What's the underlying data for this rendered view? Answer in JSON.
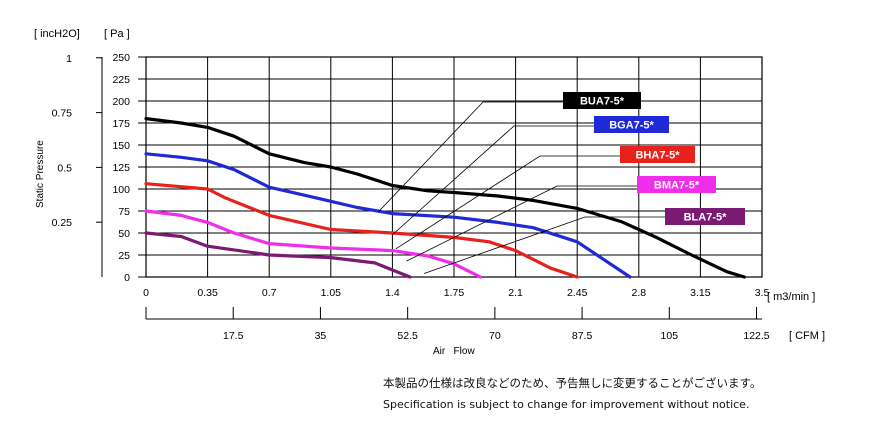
{
  "chart_data": {
    "type": "line",
    "ylabel_pa_unit": "[ Pa ]",
    "ylabel_inh2o_unit": "[ incH2O]",
    "ylabel": "Static Pressure",
    "xlabel": "Air   Flow",
    "x_unit_m3": "[ m3/min ]",
    "x_unit_cfm": "[ CFM ]",
    "xlim": [
      0,
      3.5
    ],
    "ylim": [
      0,
      250
    ],
    "grid": true,
    "x_ticks": [
      "0",
      "0.35",
      "0.7",
      "1.05",
      "1.4",
      "1.75",
      "2.1",
      "2.45",
      "2.8",
      "3.15",
      "3.5"
    ],
    "cfm_ticks": [
      "17.5",
      "35",
      "52.5",
      "70",
      "87.5",
      "105",
      "122.5"
    ],
    "y_ticks_pa": [
      "0",
      "25",
      "50",
      "75",
      "100",
      "125",
      "150",
      "175",
      "200",
      "225",
      "250"
    ],
    "y_ticks_inh2o": [
      "0.25",
      "0.5",
      "0.75",
      "1"
    ],
    "series": [
      {
        "name": "BUA7-5*",
        "color": "#000000",
        "x": [
          0,
          0.2,
          0.35,
          0.5,
          0.7,
          0.9,
          1.05,
          1.2,
          1.4,
          1.6,
          1.75,
          2.0,
          2.2,
          2.45,
          2.7,
          2.9,
          3.1,
          3.3,
          3.4
        ],
        "y": [
          180,
          175,
          170,
          160,
          140,
          130,
          125,
          117,
          104,
          98,
          96,
          92,
          87,
          78,
          63,
          45,
          25,
          6,
          0
        ]
      },
      {
        "name": "BGA7-5*",
        "color": "#1f2ad6",
        "x": [
          0,
          0.2,
          0.35,
          0.5,
          0.7,
          0.9,
          1.05,
          1.2,
          1.4,
          1.75,
          2.0,
          2.2,
          2.45,
          2.6,
          2.75
        ],
        "y": [
          140,
          136,
          132,
          122,
          102,
          93,
          86,
          79,
          72,
          68,
          62,
          56,
          40,
          20,
          0
        ]
      },
      {
        "name": "BHA7-5*",
        "color": "#e8211c",
        "x": [
          0,
          0.35,
          0.45,
          0.7,
          1.05,
          1.4,
          1.75,
          1.95,
          2.1,
          2.3,
          2.45
        ],
        "y": [
          106,
          100,
          90,
          70,
          54,
          50,
          45,
          40,
          30,
          10,
          0
        ]
      },
      {
        "name": "BMA7-5*",
        "color": "#ef2ee9",
        "x": [
          0,
          0.2,
          0.35,
          0.5,
          0.7,
          1.05,
          1.4,
          1.6,
          1.75,
          1.9
        ],
        "y": [
          75,
          70,
          62,
          50,
          38,
          33,
          30,
          24,
          15,
          0
        ]
      },
      {
        "name": "BLA7-5*",
        "color": "#7a1a72",
        "x": [
          0,
          0.2,
          0.35,
          0.6,
          0.7,
          1.05,
          1.3,
          1.4,
          1.5
        ],
        "y": [
          50,
          46,
          35,
          28,
          25,
          22,
          16,
          8,
          0
        ]
      }
    ]
  },
  "notes": {
    "japanese": "本製品の仕様は改良などのため、予告無しに変更することがございます。",
    "english": "Specification is subject to change for improvement without notice."
  }
}
